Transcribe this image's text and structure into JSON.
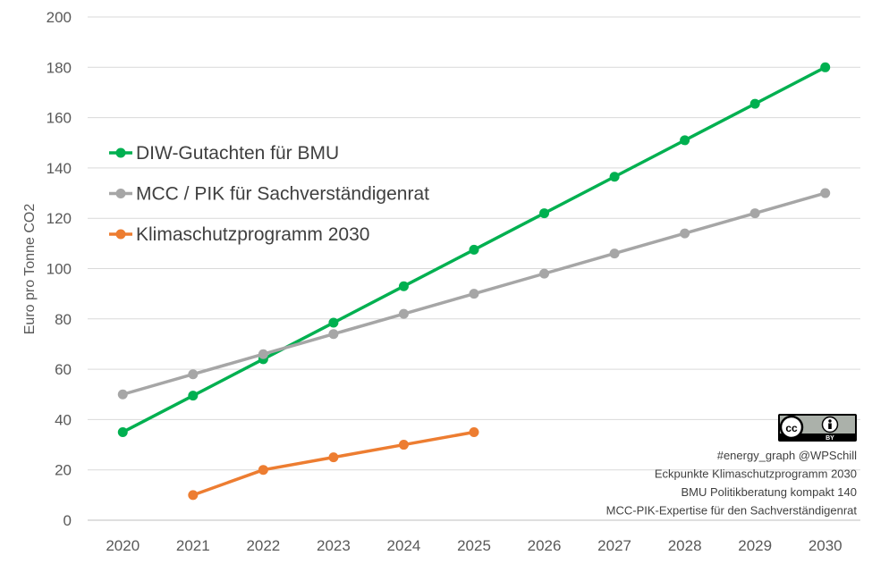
{
  "chart_data": {
    "type": "line",
    "ylabel": "Euro pro Tonne CO2",
    "xlabel": "",
    "x": [
      "2020",
      "2021",
      "2022",
      "2023",
      "2024",
      "2025",
      "2026",
      "2027",
      "2028",
      "2029",
      "2030"
    ],
    "ylim": [
      0,
      200
    ],
    "yticks": [
      0,
      20,
      40,
      60,
      80,
      100,
      120,
      140,
      160,
      180,
      200
    ],
    "grid": true,
    "legend_position": "upper-left",
    "series": [
      {
        "name": "DIW-Gutachten für BMU",
        "color": "#00B050",
        "values": [
          35,
          49.5,
          64,
          78.5,
          93,
          107.5,
          122,
          136.5,
          151,
          165.5,
          180
        ]
      },
      {
        "name": "MCC / PIK für Sachverständigenrat",
        "color": "#A6A6A6",
        "values": [
          50,
          58,
          66,
          74,
          82,
          90,
          98,
          106,
          114,
          122,
          130
        ]
      },
      {
        "name": "Klimaschutzprogramm 2030",
        "color": "#ED7D31",
        "values": [
          null,
          10,
          20,
          25,
          30,
          35,
          null,
          null,
          null,
          null,
          null
        ]
      }
    ],
    "license_badge": {
      "icon": "cc-by-icon",
      "sub_label": "BY"
    },
    "source_notes": [
      "#energy_graph @WPSchill",
      "Eckpunkte Klimaschutzprogramm 2030",
      "BMU Politikberatung kompakt 140",
      "MCC-PIK-Expertise für den Sachverständigenrat"
    ]
  }
}
